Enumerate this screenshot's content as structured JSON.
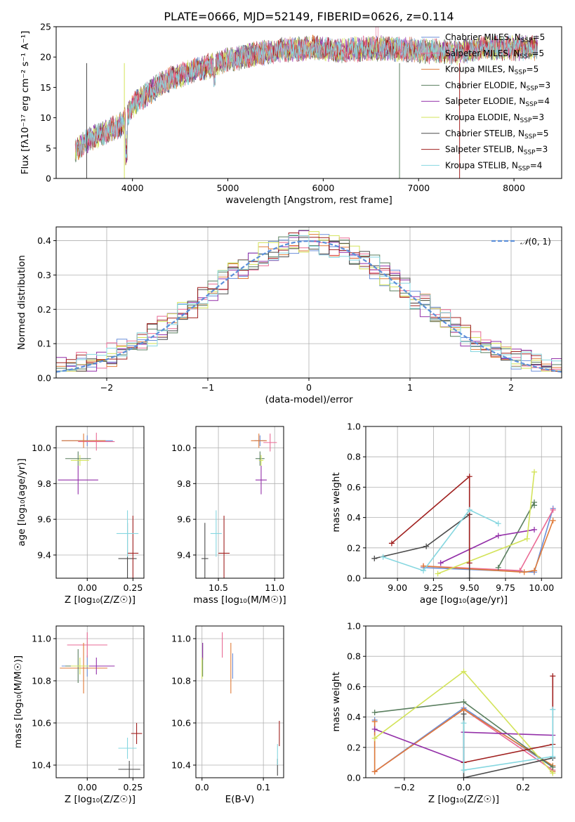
{
  "colors": {
    "chabrier_miles": "#6c8fd9",
    "salpeter_miles": "#ea6a94",
    "kroupa_miles": "#e07b39",
    "chabrier_elodie": "#5a7f5f",
    "salpeter_elodie": "#932fa8",
    "kroupa_elodie": "#d3e35a",
    "chabrier_stelib": "#4b4b4b",
    "salpeter_stelib": "#a0201f",
    "kroupa_stelib": "#86d7e0",
    "gauss": "#5b8fd9"
  },
  "chart_data": [
    {
      "id": "spectrum",
      "type": "line",
      "title": "PLATE=0666, MJD=52149, FIBERID=0626, z=0.114",
      "xlabel": "wavelength [Angstrom, rest frame]",
      "ylabel": "Flux [fλ10⁻¹⁷ erg cm⁻² s⁻¹ A⁻¹]",
      "xlim": [
        3200,
        8500
      ],
      "ylim": [
        0,
        25
      ],
      "xticks": [
        4000,
        5000,
        6000,
        7000,
        8000
      ],
      "yticks": [
        0,
        5,
        10,
        15,
        20,
        25
      ],
      "continuum_x": [
        3400,
        3550,
        3700,
        3900,
        4000,
        4200,
        4400,
        4700,
        5000,
        5300,
        5600,
        5900,
        6200,
        6500,
        6800,
        7100,
        7400,
        7700,
        8000,
        8250
      ],
      "continuum_y": [
        4.5,
        6.5,
        7.5,
        9,
        12,
        14.5,
        16.5,
        18,
        19.5,
        20.5,
        21.2,
        21.5,
        21,
        21.5,
        21.3,
        21,
        20.8,
        21.5,
        21.5,
        21.5
      ],
      "legend": [
        "Chabrier MILES, N_SSP=5",
        "Salpeter MILES, N_SSP=5",
        "Kroupa MILES, N_SSP=5",
        "Chabrier ELODIE, N_SSP=3",
        "Salpeter ELODIE, N_SSP=4",
        "Kroupa ELODIE, N_SSP=3",
        "Chabrier STELIB, N_SSP=5",
        "Salpeter STELIB, N_SSP=3",
        "Kroupa STELIB, N_SSP=4"
      ],
      "legend_html": [
        "Chabrier MILES, N<tspan font-size='9' dy='3'>SSP</tspan><tspan dy='-3'>=5</tspan>",
        "Salpeter MILES, N<tspan font-size='9' dy='3'>SSP</tspan><tspan dy='-3'>=5</tspan>",
        "Kroupa MILES, N<tspan font-size='9' dy='3'>SSP</tspan><tspan dy='-3'>=5</tspan>",
        "Chabrier ELODIE, N<tspan font-size='9' dy='3'>SSP</tspan><tspan dy='-3'>=3</tspan>",
        "Salpeter ELODIE, N<tspan font-size='9' dy='3'>SSP</tspan><tspan dy='-3'>=4</tspan>",
        "Kroupa ELODIE, N<tspan font-size='9' dy='3'>SSP</tspan><tspan dy='-3'>=3</tspan>",
        "Chabrier STELIB, N<tspan font-size='9' dy='3'>SSP</tspan><tspan dy='-3'>=5</tspan>",
        "Salpeter STELIB, N<tspan font-size='9' dy='3'>SSP</tspan><tspan dy='-3'>=3</tspan>",
        "Kroupa STELIB, N<tspan font-size='9' dy='3'>SSP</tspan><tspan dy='-3'>=4</tspan>"
      ],
      "legend_placement": "top-right"
    },
    {
      "id": "residuals",
      "type": "step",
      "xlabel": "(data-model)/error",
      "ylabel": "Normed distribution",
      "xlim": [
        -2.5,
        2.5
      ],
      "ylim": [
        0,
        0.44
      ],
      "xticks": [
        -2,
        -1,
        0,
        1,
        2
      ],
      "yticks": [
        0.0,
        0.1,
        0.2,
        0.3,
        0.4
      ],
      "bin_edges_start": -2.5,
      "bin_width": 0.1,
      "gauss_label": "𝒩(0, 1)",
      "gauss_label_display": "(0, 1)",
      "legend_placement": "top-right"
    },
    {
      "id": "age-vs-z",
      "type": "errorbar",
      "xlabel": "Z [log₁₀(Z/Z☉)]",
      "ylabel": "age  [log₁₀(age/yr)]",
      "xlim": [
        -0.17,
        0.31
      ],
      "ylim": [
        9.27,
        10.12
      ],
      "xticks": [
        0.0,
        0.25
      ],
      "yticks": [
        9.4,
        9.6,
        9.8,
        10.0
      ],
      "points": [
        {
          "x": 0.0,
          "y": 10.04,
          "xerr": 0.14,
          "yerr": 0.03,
          "c": "chabrier_miles"
        },
        {
          "x": 0.05,
          "y": 10.035,
          "xerr": 0.1,
          "yerr": 0.05,
          "c": "salpeter_miles"
        },
        {
          "x": -0.02,
          "y": 10.04,
          "xerr": 0.12,
          "yerr": 0.04,
          "c": "kroupa_miles"
        },
        {
          "x": -0.05,
          "y": 9.94,
          "xerr": 0.07,
          "yerr": 0.04,
          "c": "chabrier_elodie"
        },
        {
          "x": -0.05,
          "y": 9.82,
          "xerr": 0.11,
          "yerr": 0.08,
          "c": "salpeter_elodie"
        },
        {
          "x": -0.04,
          "y": 9.93,
          "xerr": 0.05,
          "yerr": 0.03,
          "c": "kroupa_elodie"
        },
        {
          "x": 0.22,
          "y": 9.38,
          "xerr": 0.05,
          "yerr": 0.2,
          "c": "chabrier_stelib"
        },
        {
          "x": 0.25,
          "y": 9.41,
          "xerr": 0.03,
          "yerr": 0.21,
          "c": "salpeter_stelib"
        },
        {
          "x": 0.22,
          "y": 9.52,
          "xerr": 0.06,
          "yerr": 0.13,
          "c": "kroupa_stelib"
        }
      ]
    },
    {
      "id": "age-vs-mass",
      "type": "errorbar",
      "xlabel": "mass [log₁₀(M/M☉)]",
      "ylabel": "",
      "xlim": [
        10.3,
        11.08
      ],
      "ylim": [
        9.27,
        10.12
      ],
      "xticks": [
        10.5,
        11.0
      ],
      "yticks": [
        9.4,
        9.6,
        9.8,
        10.0
      ],
      "points": [
        {
          "x": 10.87,
          "y": 10.04,
          "xerr": 0.05,
          "yerr": 0.03,
          "c": "chabrier_miles"
        },
        {
          "x": 10.96,
          "y": 10.03,
          "xerr": 0.06,
          "yerr": 0.05,
          "c": "salpeter_miles"
        },
        {
          "x": 10.86,
          "y": 10.04,
          "xerr": 0.07,
          "yerr": 0.04,
          "c": "kroupa_miles"
        },
        {
          "x": 10.87,
          "y": 9.94,
          "xerr": 0.04,
          "yerr": 0.04,
          "c": "chabrier_elodie"
        },
        {
          "x": 10.88,
          "y": 9.82,
          "xerr": 0.05,
          "yerr": 0.08,
          "c": "salpeter_elodie"
        },
        {
          "x": 10.88,
          "y": 9.93,
          "xerr": 0.02,
          "yerr": 0.03,
          "c": "kroupa_elodie"
        },
        {
          "x": 10.38,
          "y": 9.38,
          "xerr": 0.03,
          "yerr": 0.2,
          "c": "chabrier_stelib"
        },
        {
          "x": 10.55,
          "y": 9.41,
          "xerr": 0.05,
          "yerr": 0.21,
          "c": "salpeter_stelib"
        },
        {
          "x": 10.48,
          "y": 9.52,
          "xerr": 0.05,
          "yerr": 0.13,
          "c": "kroupa_stelib"
        }
      ]
    },
    {
      "id": "weight-vs-age",
      "type": "line",
      "xlabel": "age  [log₁₀(age/yr)]",
      "ylabel": "mass weight",
      "xlim": [
        8.78,
        10.14
      ],
      "ylim": [
        0,
        1
      ],
      "xticks": [
        9.0,
        9.25,
        9.5,
        9.75,
        10.0
      ],
      "yticks": [
        0.0,
        0.2,
        0.4,
        0.6,
        0.8,
        1.0
      ],
      "series": [
        {
          "c": "chabrier_miles",
          "x": [
            9.18,
            9.95,
            10.08
          ],
          "y": [
            0.07,
            0.04,
            0.46
          ]
        },
        {
          "c": "salpeter_miles",
          "x": [
            9.18,
            9.85,
            10.08
          ],
          "y": [
            0.08,
            0.05,
            0.45
          ]
        },
        {
          "c": "kroupa_miles",
          "x": [
            9.18,
            9.88,
            9.95,
            10.08
          ],
          "y": [
            0.08,
            0.04,
            0.05,
            0.38
          ]
        },
        {
          "c": "chabrier_elodie",
          "x": [
            9.7,
            9.95,
            9.95
          ],
          "y": [
            0.07,
            0.5,
            0.48
          ]
        },
        {
          "c": "salpeter_elodie",
          "x": [
            9.3,
            9.7,
            9.95
          ],
          "y": [
            0.1,
            0.28,
            0.32
          ]
        },
        {
          "c": "kroupa_elodie",
          "x": [
            9.28,
            9.9,
            9.95
          ],
          "y": [
            0.03,
            0.26,
            0.7
          ]
        },
        {
          "c": "chabrier_stelib",
          "x": [
            8.84,
            9.2,
            9.5,
            9.5
          ],
          "y": [
            0.13,
            0.21,
            0.42,
            0.0
          ]
        },
        {
          "c": "salpeter_stelib",
          "x": [
            8.96,
            9.5,
            9.5
          ],
          "y": [
            0.23,
            0.67,
            0.1
          ]
        },
        {
          "c": "kroupa_stelib",
          "x": [
            8.9,
            9.18,
            9.5,
            9.7
          ],
          "y": [
            0.14,
            0.05,
            0.45,
            0.36
          ]
        }
      ]
    },
    {
      "id": "mass-vs-z",
      "type": "errorbar",
      "xlabel": "Z [log₁₀(Z/Z☉)]",
      "ylabel": "mass [log₁₀(M/M☉)]",
      "xlim": [
        -0.17,
        0.31
      ],
      "ylim": [
        10.34,
        11.06
      ],
      "xticks": [
        0.0,
        0.25
      ],
      "yticks": [
        10.4,
        10.6,
        10.8,
        11.0
      ],
      "points": [
        {
          "x": 0.0,
          "y": 10.87,
          "xerr": 0.14,
          "yerr": 0.05,
          "c": "chabrier_miles"
        },
        {
          "x": 0.0,
          "y": 10.97,
          "xerr": 0.11,
          "yerr": 0.06,
          "c": "salpeter_miles"
        },
        {
          "x": -0.02,
          "y": 10.86,
          "xerr": 0.13,
          "yerr": 0.12,
          "c": "kroupa_miles"
        },
        {
          "x": -0.05,
          "y": 10.87,
          "xerr": 0.07,
          "yerr": 0.08,
          "c": "chabrier_elodie"
        },
        {
          "x": 0.05,
          "y": 10.87,
          "xerr": 0.1,
          "yerr": 0.04,
          "c": "salpeter_elodie"
        },
        {
          "x": -0.04,
          "y": 10.87,
          "xerr": 0.05,
          "yerr": 0.04,
          "c": "kroupa_elodie"
        },
        {
          "x": 0.23,
          "y": 10.38,
          "xerr": 0.06,
          "yerr": 0.04,
          "c": "chabrier_stelib"
        },
        {
          "x": 0.27,
          "y": 10.55,
          "xerr": 0.03,
          "yerr": 0.05,
          "c": "salpeter_stelib"
        },
        {
          "x": 0.22,
          "y": 10.48,
          "xerr": 0.05,
          "yerr": 0.05,
          "c": "kroupa_stelib"
        }
      ]
    },
    {
      "id": "mass-vs-ebv",
      "type": "errorbar",
      "xlabel": "E(B-V)",
      "ylabel": "",
      "xlim": [
        -0.01,
        0.133
      ],
      "ylim": [
        10.34,
        11.06
      ],
      "xticks": [
        0.0,
        0.1
      ],
      "yticks": [
        10.4,
        10.6,
        10.8,
        11.0
      ],
      "points": [
        {
          "x": 0.05,
          "y": 10.87,
          "xerr": 0.0,
          "yerr": 0.06,
          "c": "chabrier_miles"
        },
        {
          "x": 0.033,
          "y": 10.97,
          "xerr": 0.0,
          "yerr": 0.06,
          "c": "salpeter_miles"
        },
        {
          "x": 0.047,
          "y": 10.86,
          "xerr": 0.0,
          "yerr": 0.12,
          "c": "kroupa_miles"
        },
        {
          "x": 0.001,
          "y": 10.9,
          "xerr": 0.0,
          "yerr": 0.08,
          "c": "chabrier_elodie"
        },
        {
          "x": 0.001,
          "y": 10.94,
          "xerr": 0.0,
          "yerr": 0.04,
          "c": "salpeter_elodie"
        },
        {
          "x": 0.0,
          "y": 10.86,
          "xerr": 0.0,
          "yerr": 0.05,
          "c": "kroupa_elodie"
        },
        {
          "x": 0.123,
          "y": 10.39,
          "xerr": 0.0,
          "yerr": 0.04,
          "c": "chabrier_stelib"
        },
        {
          "x": 0.126,
          "y": 10.55,
          "xerr": 0.0,
          "yerr": 0.06,
          "c": "salpeter_stelib"
        },
        {
          "x": 0.123,
          "y": 10.45,
          "xerr": 0.0,
          "yerr": 0.05,
          "c": "kroupa_stelib"
        }
      ]
    },
    {
      "id": "weight-vs-z",
      "type": "line",
      "xlabel": "Z [log₁₀(Z/Z☉)]",
      "ylabel": "mass weight",
      "xlim": [
        -0.33,
        0.33
      ],
      "ylim": [
        0,
        1
      ],
      "xticks": [
        -0.2,
        0.0,
        0.2
      ],
      "yticks": [
        0.0,
        0.2,
        0.4,
        0.6,
        0.8,
        1.0
      ],
      "xticklabels": [
        "−0.2",
        "0.0",
        "0.2"
      ],
      "series": [
        {
          "c": "chabrier_miles",
          "x": [
            -0.3,
            -0.3,
            0.0,
            0.3,
            0.3
          ],
          "y": [
            0.38,
            0.04,
            0.46,
            0.07,
            0.04
          ]
        },
        {
          "c": "salpeter_miles",
          "x": [
            -0.3,
            0.0,
            0.3
          ],
          "y": [
            0.04,
            0.45,
            0.05
          ]
        },
        {
          "c": "kroupa_miles",
          "x": [
            -0.3,
            -0.3,
            0.0,
            0.3,
            0.3
          ],
          "y": [
            0.37,
            0.04,
            0.45,
            0.08,
            0.04
          ]
        },
        {
          "c": "chabrier_elodie",
          "x": [
            -0.3,
            0.0,
            0.3
          ],
          "y": [
            0.43,
            0.5,
            0.07
          ]
        },
        {
          "c": "salpeter_elodie",
          "x": [
            -0.3,
            0.0,
            0.0,
            0.3
          ],
          "y": [
            0.32,
            0.1,
            0.3,
            0.28
          ]
        },
        {
          "c": "kroupa_elodie",
          "x": [
            -0.3,
            0.0,
            0.3
          ],
          "y": [
            0.26,
            0.7,
            0.03
          ]
        },
        {
          "c": "chabrier_stelib",
          "x": [
            0.0,
            0.0,
            0.3
          ],
          "y": [
            0.42,
            0.0,
            0.13
          ]
        },
        {
          "c": "salpeter_stelib",
          "x": [
            0.0,
            0.3,
            0.3
          ],
          "y": [
            0.1,
            0.22,
            0.67
          ]
        },
        {
          "c": "kroupa_stelib",
          "x": [
            0.0,
            0.0,
            0.3,
            0.3
          ],
          "y": [
            0.36,
            0.05,
            0.14,
            0.45
          ]
        }
      ]
    }
  ]
}
